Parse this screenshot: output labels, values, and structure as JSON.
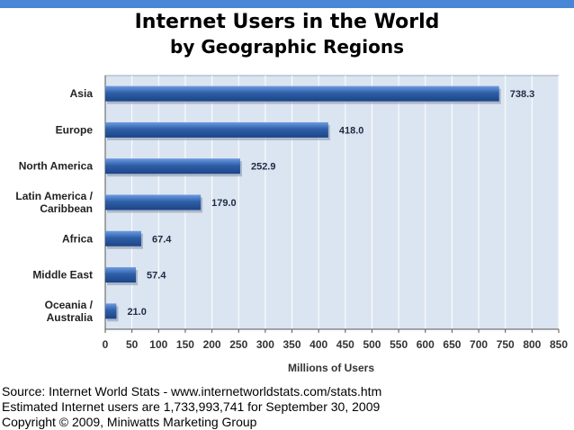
{
  "chart_data": {
    "type": "bar",
    "orientation": "horizontal",
    "title": "Internet Users in the World",
    "subtitle": "by Geographic Regions",
    "xlabel": "Millions of Users",
    "ylabel": "",
    "categories": [
      [
        "Asia"
      ],
      [
        "Europe"
      ],
      [
        "North America"
      ],
      [
        "Latin America /",
        "Caribbean"
      ],
      [
        "Africa"
      ],
      [
        "Middle East"
      ],
      [
        "Oceania  /",
        "Australia"
      ]
    ],
    "values": [
      738.3,
      418.0,
      252.9,
      179.0,
      67.4,
      57.4,
      21.0
    ],
    "data_labels": [
      "738.3",
      "418.0",
      "252.9",
      "179.0",
      "67.4",
      "57.4",
      "21.0"
    ],
    "xlim": [
      0,
      850
    ],
    "xticks": [
      0,
      50,
      100,
      150,
      200,
      250,
      300,
      350,
      400,
      450,
      500,
      550,
      600,
      650,
      700,
      750,
      800,
      850
    ],
    "grid": true,
    "legend": "none",
    "colors": {
      "bar": "#2e5fa8",
      "plot_bg": "#dbe5f1",
      "grid": "#ffffff",
      "accent": "#4a86d8"
    }
  },
  "footer": {
    "source": "Source: Internet World Stats - www.internetworldstats.com/stats.htm",
    "estimate": "Estimated Internet users are 1,733,993,741 for September 30, 2009",
    "copyright": "Copyright © 2009, Miniwatts Marketing Group"
  }
}
